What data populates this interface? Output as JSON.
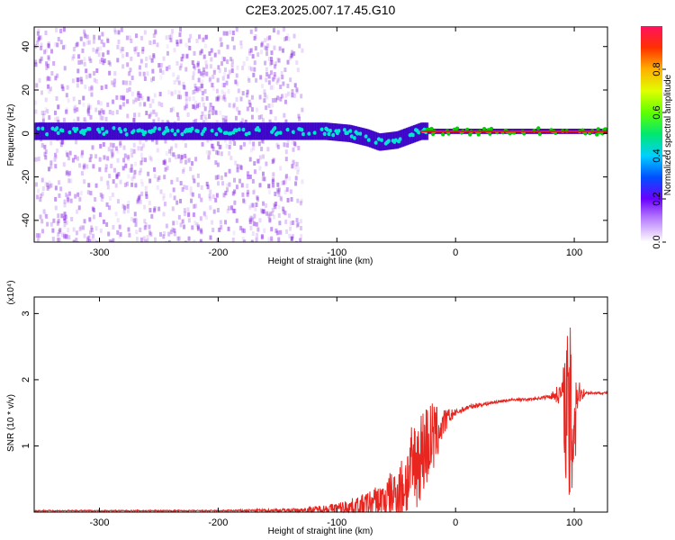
{
  "title": "C2E3.2025.007.17.45.G10",
  "colors": {
    "signal_line": "#e8251f",
    "spectrogram_scatter": "#8a2be2",
    "ridge_dark": "#3a00c8",
    "ridge_cyan": "#00e6d0",
    "ridge_green": "#00d000",
    "ridge_red": "#ff1010"
  },
  "chart_data": [
    {
      "type": "heatmap",
      "name": "spectrogram",
      "xlabel": "Height of straight line (km)",
      "ylabel": "Frequency (Hz)",
      "xlim": [
        -355,
        128
      ],
      "ylim": [
        -50,
        49
      ],
      "x_ticks": [
        -300,
        -200,
        -100,
        0,
        100
      ],
      "y_ticks": [
        -40,
        -20,
        0,
        20,
        40
      ],
      "colorbar": {
        "label": "Normalized spectral amplitude",
        "range": [
          0,
          1
        ],
        "ticks": [
          "0.0",
          "0.2",
          "0.4",
          "0.6",
          "0.8"
        ],
        "colormap": "rainbow"
      },
      "ridge": {
        "x": [
          -350,
          -300,
          -250,
          -200,
          -150,
          -110,
          -90,
          -75,
          -65,
          -50,
          -40,
          -30,
          -20,
          0,
          50,
          90,
          100,
          128
        ],
        "frequency": [
          1,
          1,
          1,
          1,
          1,
          1,
          0,
          -2,
          -4,
          -3,
          -1,
          1,
          1,
          1,
          1,
          1,
          1,
          1
        ],
        "amplitude": [
          0.3,
          0.3,
          0.3,
          0.3,
          0.35,
          0.4,
          0.4,
          0.35,
          0.3,
          0.35,
          0.5,
          0.7,
          0.9,
          0.95,
          0.95,
          0.95,
          0.95,
          0.95
        ]
      },
      "noise_region_x": [
        -355,
        -130
      ]
    },
    {
      "type": "line",
      "name": "snr",
      "xlabel": "Height of straight line (km)",
      "ylabel": "SNR (10 * v/v)",
      "y_multiplier": "(x10⁴)",
      "xlim": [
        -355,
        128
      ],
      "ylim": [
        0,
        3.25
      ],
      "x_ticks": [
        -300,
        -200,
        -100,
        0,
        100
      ],
      "y_ticks": [
        1,
        2,
        3
      ],
      "envelope": {
        "x": [
          -355,
          -200,
          -130,
          -100,
          -80,
          -60,
          -45,
          -35,
          -25,
          -20,
          -15,
          -10,
          -5,
          0,
          10,
          20,
          30,
          40,
          50,
          60,
          70,
          80,
          90,
          93,
          96,
          100,
          103,
          110,
          128
        ],
        "y_mean": [
          0.02,
          0.02,
          0.03,
          0.06,
          0.1,
          0.18,
          0.35,
          0.7,
          1.0,
          1.1,
          1.2,
          1.35,
          1.45,
          1.5,
          1.58,
          1.62,
          1.65,
          1.68,
          1.7,
          1.7,
          1.72,
          1.75,
          1.8,
          1.6,
          1.2,
          1.5,
          1.8,
          1.8,
          1.8
        ],
        "y_noise": [
          0.01,
          0.01,
          0.03,
          0.08,
          0.15,
          0.3,
          0.5,
          0.7,
          0.7,
          0.6,
          0.4,
          0.2,
          0.12,
          0.05,
          0.04,
          0.03,
          0.03,
          0.02,
          0.02,
          0.02,
          0.02,
          0.04,
          0.2,
          1.2,
          1.6,
          1.5,
          0.2,
          0.02,
          0.02
        ]
      }
    }
  ]
}
